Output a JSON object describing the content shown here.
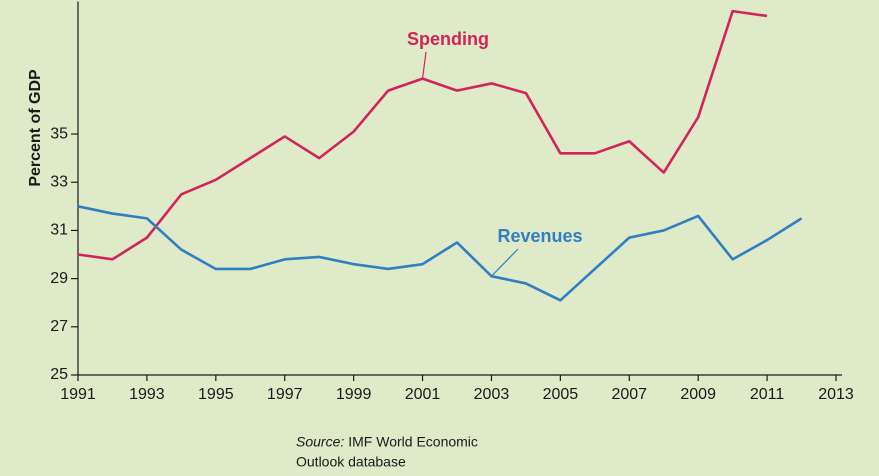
{
  "chart_data": {
    "type": "line",
    "y_label": "Percent of GDP",
    "x": [
      1991,
      1992,
      1993,
      1994,
      1995,
      1996,
      1997,
      1998,
      1999,
      2000,
      2001,
      2002,
      2003,
      2004,
      2005,
      2006,
      2007,
      2008,
      2009,
      2010,
      2011,
      2012
    ],
    "series": [
      {
        "name": "Spending",
        "color": "#d3245a",
        "values": [
          30.0,
          29.8,
          30.7,
          32.5,
          33.1,
          34.0,
          34.9,
          34.0,
          35.1,
          36.8,
          37.3,
          36.8,
          37.1,
          36.7,
          34.2,
          34.2,
          34.7,
          33.4,
          35.7,
          40.1,
          39.9,
          null
        ]
      },
      {
        "name": "Revenues",
        "color": "#2f7fc1",
        "values": [
          32.0,
          31.7,
          31.5,
          30.2,
          29.4,
          29.4,
          29.8,
          29.9,
          29.6,
          29.4,
          29.6,
          30.5,
          29.1,
          28.8,
          28.1,
          29.4,
          30.7,
          31.0,
          31.6,
          29.8,
          30.6,
          31.5
        ]
      }
    ],
    "xlim": [
      1991,
      2013
    ],
    "xticks": [
      1991,
      1993,
      1995,
      1997,
      1999,
      2001,
      2003,
      2005,
      2007,
      2009,
      2011,
      2013
    ],
    "ylim": [
      25,
      40.5
    ],
    "yticks": [
      25,
      27,
      29,
      31,
      33,
      35
    ],
    "source_prefix": "Source:",
    "source_lines": [
      "IMF World Economic",
      "Outlook database"
    ]
  }
}
